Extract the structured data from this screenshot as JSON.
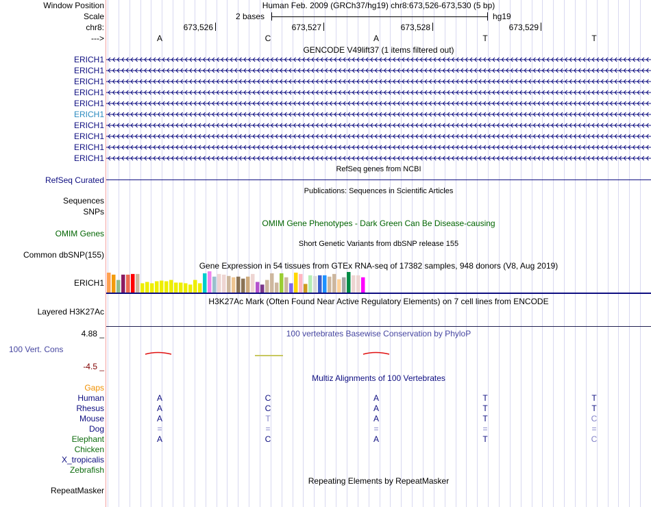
{
  "header": {
    "window_position_label": "Window Position",
    "window_position_text": "Human Feb. 2009 (GRCh37/hg19)   chr8:673,526-673,530 (5 bp)",
    "scale_label": "Scale",
    "scale_text": "2 bases",
    "scale_assembly": "hg19",
    "chrom_label": "chr8:",
    "positions": [
      "673,526",
      "673,527",
      "673,528",
      "673,529"
    ],
    "strand_label": "--->",
    "bases": [
      "A",
      "C",
      "A",
      "T",
      "T"
    ]
  },
  "gencode": {
    "title": "GENCODE V49lift37 (1 items filtered out)",
    "genes": [
      "ERICH1",
      "ERICH1",
      "ERICH1",
      "ERICH1",
      "ERICH1",
      "ERICH1",
      "ERICH1",
      "ERICH1",
      "ERICH1",
      "ERICH1"
    ],
    "highlight_index": 5
  },
  "refseq": {
    "title": "RefSeq genes from NCBI",
    "label": "RefSeq Curated"
  },
  "publications": {
    "title": "Publications: Sequences in Scientific Articles",
    "labels": [
      "Sequences",
      "SNPs"
    ]
  },
  "omim": {
    "title": "OMIM Gene Phenotypes - Dark Green Can Be Disease-causing",
    "label": "OMIM Genes"
  },
  "dbsnp": {
    "title": "Short Genetic Variants from dbSNP release 155",
    "label": "Common dbSNP(155)"
  },
  "gtex": {
    "title": "Gene Expression in 54 tissues from GTEx RNA-seq of 17382 samples, 948 donors (V8, Aug 2019)",
    "label": "ERICH1",
    "values": [
      30,
      27,
      19,
      27,
      27,
      28,
      28,
      14,
      16,
      14,
      17,
      18,
      17,
      19,
      15,
      15,
      14,
      12,
      19,
      14,
      29,
      32,
      24,
      28,
      27,
      25,
      23,
      24,
      21,
      24,
      28,
      16,
      12,
      19,
      29,
      15,
      29,
      23,
      14,
      30,
      28,
      13,
      26,
      25,
      26,
      26,
      24,
      28,
      20,
      23,
      31,
      26,
      26,
      23
    ],
    "colors": [
      "#ff9f4f",
      "#f29b0c",
      "#8fbc8f",
      "#8b1c62",
      "#ee6a50",
      "#ff0000",
      "#cdb79e",
      "#eeee00",
      "#eeee00",
      "#eeee00",
      "#eeee00",
      "#eeee00",
      "#eeee00",
      "#eeee00",
      "#eeee00",
      "#eeee00",
      "#eeee00",
      "#eeee00",
      "#eeee00",
      "#eeee00",
      "#00cdcd",
      "#ee82ee",
      "#9ac0cd",
      "#eed5d2",
      "#eed5d2",
      "#cdb79e",
      "#eec591",
      "#8b7355",
      "#8b7355",
      "#cdaa7d",
      "#eed5d2",
      "#b452cd",
      "#7a378b",
      "#cdb79e",
      "#cdb79e",
      "#cdb79e",
      "#9acd32",
      "#cdb79e",
      "#7b68ee",
      "#ffd700",
      "#ffb6c1",
      "#cd9b1d",
      "#b4eeb4",
      "#d9d9d9",
      "#3a5fcd",
      "#1e90ff",
      "#cdb79e",
      "#cdb79e",
      "#ffd39b",
      "#a6a6a6",
      "#008b45",
      "#eed5d2",
      "#eed5d2",
      "#ff00ff"
    ]
  },
  "h3k27ac": {
    "title": "H3K27Ac Mark (Often Found Near Active Regulatory Elements) on 7 cell lines from ENCODE",
    "label": "Layered H3K27Ac"
  },
  "phylop": {
    "title": "100 vertebrates Basewise Conservation by PhyloP",
    "label": "100 Vert. Cons",
    "max": "4.88 _",
    "min": "-4.5 _"
  },
  "multiz": {
    "title": "Multiz Alignments of 100 Vertebrates",
    "gaps_label": "Gaps",
    "species": [
      {
        "name": "Human",
        "color": "#0d0d80",
        "bases": [
          "A",
          "C",
          "A",
          "T",
          "T"
        ],
        "faint": [
          false,
          false,
          false,
          false,
          false
        ]
      },
      {
        "name": "Rhesus",
        "color": "#0d0d80",
        "bases": [
          "A",
          "C",
          "A",
          "T",
          "T"
        ],
        "faint": [
          false,
          false,
          false,
          false,
          false
        ]
      },
      {
        "name": "Mouse",
        "color": "#0d0d80",
        "bases": [
          "A",
          "T",
          "A",
          "T",
          "C"
        ],
        "faint": [
          false,
          true,
          false,
          false,
          true
        ]
      },
      {
        "name": "Dog",
        "color": "#0d0d80",
        "bases": [
          "=",
          "=",
          "=",
          "=",
          "="
        ],
        "faint": [
          true,
          true,
          true,
          true,
          true
        ]
      },
      {
        "name": "Elephant",
        "color": "#0d6b0d",
        "bases": [
          "A",
          "C",
          "A",
          "T",
          "C"
        ],
        "faint": [
          false,
          false,
          false,
          false,
          true
        ]
      },
      {
        "name": "Chicken",
        "color": "#0d6b0d",
        "bases": [
          "",
          "",
          "",
          "",
          ""
        ],
        "faint": [
          false,
          false,
          false,
          false,
          false
        ]
      },
      {
        "name": "X_tropicalis",
        "color": "#0d0d80",
        "bases": [
          "",
          "",
          "",
          "",
          ""
        ],
        "faint": [
          false,
          false,
          false,
          false,
          false
        ]
      },
      {
        "name": "Zebrafish",
        "color": "#0d6b0d",
        "bases": [
          "",
          "",
          "",
          "",
          ""
        ],
        "faint": [
          false,
          false,
          false,
          false,
          false
        ]
      }
    ]
  },
  "repeatmasker": {
    "title": "Repeating Elements by RepeatMasker",
    "label": "RepeatMasker"
  },
  "colors": {
    "navy": "#0d0d80",
    "green": "#006400",
    "gaps": "#f09000",
    "phylop": "#4646a0",
    "faint": "#8080c8"
  }
}
